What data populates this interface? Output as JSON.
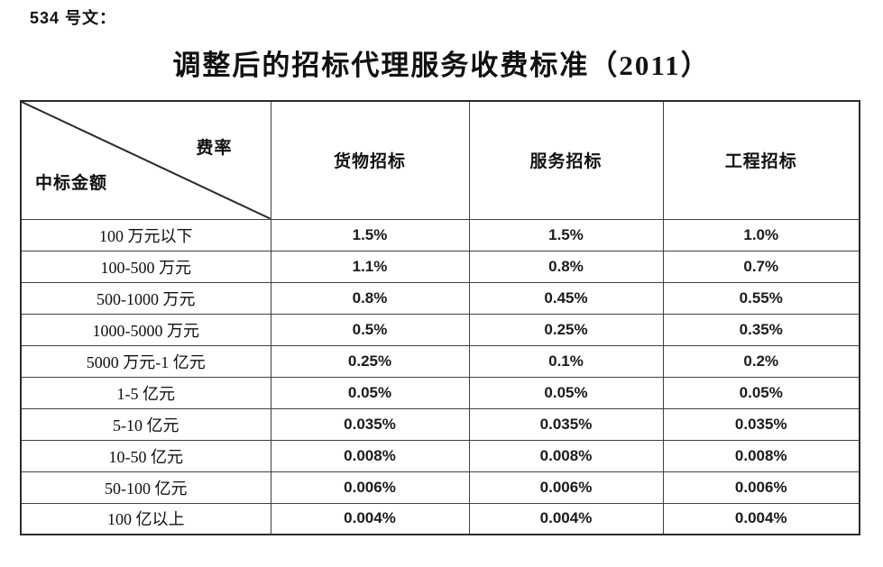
{
  "page": {
    "doc_number": "534 号文：",
    "title": "调整后的招标代理服务收费标准（2011）"
  },
  "table": {
    "corner": {
      "top_right": "费率",
      "bottom_left": "中标金额"
    },
    "columns": [
      "货物招标",
      "服务招标",
      "工程招标"
    ],
    "rows": [
      {
        "label": "100 万元以下",
        "values": [
          "1.5%",
          "1.5%",
          "1.0%"
        ]
      },
      {
        "label": "100-500 万元",
        "values": [
          "1.1%",
          "0.8%",
          "0.7%"
        ]
      },
      {
        "label": "500-1000 万元",
        "values": [
          "0.8%",
          "0.45%",
          "0.55%"
        ]
      },
      {
        "label": "1000-5000 万元",
        "values": [
          "0.5%",
          "0.25%",
          "0.35%"
        ]
      },
      {
        "label": "5000 万元-1 亿元",
        "values": [
          "0.25%",
          "0.1%",
          "0.2%"
        ]
      },
      {
        "label": "1-5 亿元",
        "values": [
          "0.05%",
          "0.05%",
          "0.05%"
        ]
      },
      {
        "label": "5-10 亿元",
        "values": [
          "0.035%",
          "0.035%",
          "0.035%"
        ]
      },
      {
        "label": "10-50 亿元",
        "values": [
          "0.008%",
          "0.008%",
          "0.008%"
        ]
      },
      {
        "label": "50-100 亿元",
        "values": [
          "0.006%",
          "0.006%",
          "0.006%"
        ]
      },
      {
        "label": "100 亿以上",
        "values": [
          "0.004%",
          "0.004%",
          "0.004%"
        ]
      }
    ]
  },
  "colors": {
    "text": "#111111",
    "inner_border": "#404040",
    "outer_border": "#2b2b2b",
    "background": "#ffffff"
  }
}
